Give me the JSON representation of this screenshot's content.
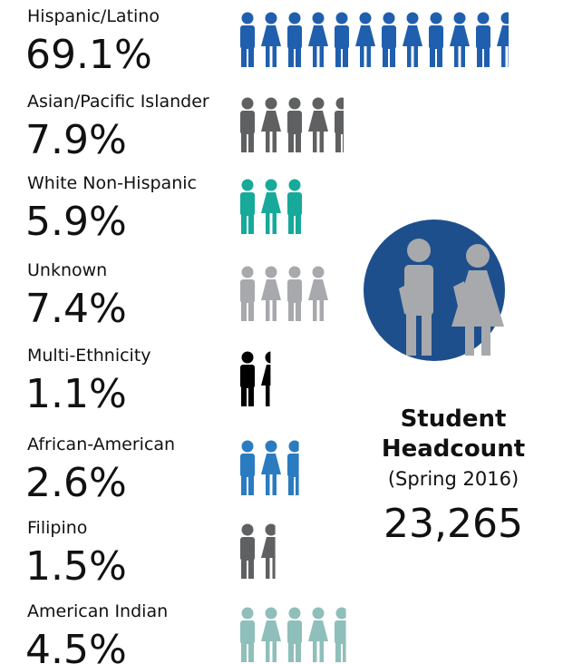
{
  "groups": [
    {
      "label": "Hispanic/Latino",
      "percent": "69.1%",
      "icons": 11.5,
      "color": "#1f5fae"
    },
    {
      "label": "Asian/Pacific Islander",
      "percent": "7.9%",
      "icons": 4.5,
      "color": "#5f6062"
    },
    {
      "label": "White Non-Hispanic",
      "percent": "5.9%",
      "icons": 3,
      "color": "#17a99a"
    },
    {
      "label": "Unknown",
      "percent": "7.4%",
      "icons": 4,
      "color": "#a7a9ac"
    },
    {
      "label": "Multi-Ethnicity",
      "percent": "1.1%",
      "icons": 1.4,
      "color": "#000000"
    },
    {
      "label": "African-American",
      "percent": "2.6%",
      "icons": 2.6,
      "color": "#2b7bc0"
    },
    {
      "label": "Filipino",
      "percent": "1.5%",
      "icons": 1.6,
      "color": "#5f6062"
    },
    {
      "label": "American Indian",
      "percent": "4.5%",
      "icons": 4.6,
      "color": "#8fbfba"
    }
  ],
  "headcount": {
    "title_line1": "Student",
    "title_line2": "Headcount",
    "term": "(Spring 2016)",
    "total": "23,265"
  }
}
